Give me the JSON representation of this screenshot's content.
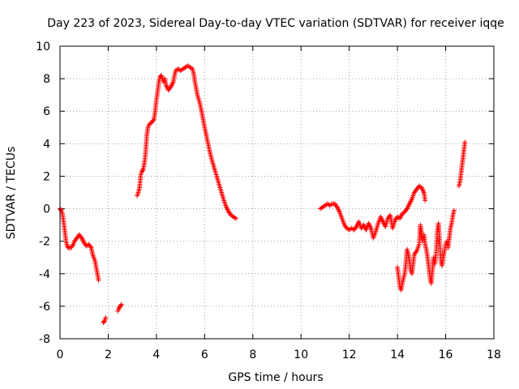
{
  "chart_data": {
    "type": "scatter",
    "title": "Day 223 of 2023, Sidereal Day-to-day VTEC variation (SDTVAR) for receiver iqqe",
    "xlabel": "GPS time / hours",
    "ylabel": "SDTVAR / TECUs",
    "xlim": [
      0,
      18
    ],
    "ylim": [
      -8,
      10
    ],
    "xticks": [
      0,
      2,
      4,
      6,
      8,
      10,
      12,
      14,
      16,
      18
    ],
    "yticks": [
      -8,
      -6,
      -4,
      -2,
      0,
      2,
      4,
      6,
      8,
      10
    ],
    "grid": true,
    "marker": "+",
    "color": "#ff0000",
    "series": [
      {
        "name": "SDTVAR",
        "segments": [
          [
            [
              0.0,
              0.0
            ],
            [
              0.05,
              -0.1
            ],
            [
              0.1,
              -0.3
            ],
            [
              0.15,
              -0.8
            ],
            [
              0.2,
              -1.4
            ],
            [
              0.25,
              -2.0
            ],
            [
              0.3,
              -2.3
            ],
            [
              0.35,
              -2.4
            ],
            [
              0.45,
              -2.4
            ],
            [
              0.55,
              -2.2
            ],
            [
              0.6,
              -2.0
            ],
            [
              0.7,
              -1.8
            ],
            [
              0.8,
              -1.6
            ],
            [
              0.9,
              -1.8
            ],
            [
              1.0,
              -2.1
            ],
            [
              1.1,
              -2.3
            ],
            [
              1.2,
              -2.2
            ],
            [
              1.3,
              -2.4
            ],
            [
              1.35,
              -2.8
            ],
            [
              1.45,
              -3.2
            ],
            [
              1.5,
              -3.6
            ],
            [
              1.55,
              -4.0
            ],
            [
              1.6,
              -4.4
            ]
          ],
          [
            [
              1.8,
              -7.0
            ],
            [
              1.85,
              -6.9
            ],
            [
              1.9,
              -6.7
            ]
          ],
          [
            [
              2.4,
              -6.3
            ],
            [
              2.45,
              -6.1
            ],
            [
              2.5,
              -6.0
            ],
            [
              2.55,
              -5.9
            ]
          ],
          [
            [
              3.2,
              0.8
            ],
            [
              3.25,
              1.0
            ],
            [
              3.3,
              1.3
            ],
            [
              3.35,
              2.1
            ],
            [
              3.4,
              2.3
            ],
            [
              3.45,
              2.4
            ],
            [
              3.5,
              2.8
            ],
            [
              3.55,
              3.4
            ],
            [
              3.6,
              4.5
            ],
            [
              3.65,
              5.0
            ],
            [
              3.7,
              5.2
            ],
            [
              3.8,
              5.3
            ],
            [
              3.9,
              5.5
            ],
            [
              3.95,
              6.0
            ],
            [
              4.0,
              6.7
            ],
            [
              4.05,
              7.2
            ],
            [
              4.1,
              7.8
            ],
            [
              4.15,
              8.1
            ],
            [
              4.2,
              8.2
            ],
            [
              4.25,
              8.0
            ],
            [
              4.3,
              7.8
            ],
            [
              4.35,
              8.0
            ],
            [
              4.4,
              7.6
            ],
            [
              4.5,
              7.3
            ],
            [
              4.6,
              7.5
            ],
            [
              4.7,
              7.8
            ],
            [
              4.75,
              8.2
            ],
            [
              4.8,
              8.5
            ],
            [
              4.9,
              8.6
            ],
            [
              5.0,
              8.5
            ],
            [
              5.1,
              8.6
            ],
            [
              5.2,
              8.7
            ],
            [
              5.3,
              8.8
            ],
            [
              5.4,
              8.7
            ],
            [
              5.5,
              8.6
            ],
            [
              5.55,
              8.3
            ],
            [
              5.6,
              7.8
            ],
            [
              5.7,
              7.0
            ],
            [
              5.8,
              6.5
            ],
            [
              5.9,
              5.8
            ],
            [
              6.0,
              5.0
            ],
            [
              6.1,
              4.3
            ],
            [
              6.2,
              3.6
            ],
            [
              6.3,
              3.0
            ],
            [
              6.4,
              2.5
            ],
            [
              6.5,
              2.0
            ],
            [
              6.6,
              1.5
            ],
            [
              6.7,
              1.0
            ],
            [
              6.8,
              0.5
            ],
            [
              6.9,
              0.1
            ],
            [
              7.0,
              -0.2
            ],
            [
              7.1,
              -0.4
            ],
            [
              7.2,
              -0.5
            ],
            [
              7.3,
              -0.6
            ]
          ],
          [
            [
              10.8,
              0.0
            ],
            [
              10.9,
              0.1
            ],
            [
              11.0,
              0.2
            ],
            [
              11.1,
              0.3
            ],
            [
              11.2,
              0.2
            ],
            [
              11.3,
              0.3
            ],
            [
              11.4,
              0.3
            ],
            [
              11.5,
              0.1
            ],
            [
              11.6,
              -0.2
            ],
            [
              11.7,
              -0.6
            ],
            [
              11.8,
              -1.0
            ],
            [
              11.9,
              -1.2
            ],
            [
              12.0,
              -1.3
            ],
            [
              12.1,
              -1.2
            ],
            [
              12.2,
              -1.3
            ],
            [
              12.3,
              -1.1
            ],
            [
              12.4,
              -0.8
            ],
            [
              12.5,
              -1.2
            ],
            [
              12.6,
              -1.0
            ],
            [
              12.7,
              -1.3
            ],
            [
              12.8,
              -0.9
            ],
            [
              12.9,
              -1.2
            ],
            [
              13.0,
              -1.8
            ],
            [
              13.1,
              -1.4
            ],
            [
              13.2,
              -0.9
            ],
            [
              13.3,
              -0.5
            ],
            [
              13.4,
              -0.8
            ],
            [
              13.5,
              -1.1
            ],
            [
              13.6,
              -0.6
            ],
            [
              13.7,
              -0.4
            ],
            [
              13.8,
              -1.2
            ],
            [
              13.9,
              -0.7
            ],
            [
              14.0,
              -0.5
            ],
            [
              14.1,
              -0.6
            ],
            [
              14.2,
              -0.3
            ],
            [
              14.3,
              -0.2
            ],
            [
              14.4,
              0.0
            ],
            [
              14.5,
              0.3
            ],
            [
              14.6,
              0.6
            ],
            [
              14.7,
              1.0
            ],
            [
              14.8,
              1.2
            ],
            [
              14.9,
              1.4
            ],
            [
              15.0,
              1.3
            ],
            [
              15.1,
              1.0
            ],
            [
              15.15,
              0.5
            ]
          ],
          [
            [
              14.0,
              -3.6
            ],
            [
              14.05,
              -4.2
            ],
            [
              14.1,
              -4.8
            ],
            [
              14.15,
              -5.0
            ],
            [
              14.2,
              -4.6
            ],
            [
              14.25,
              -4.3
            ],
            [
              14.3,
              -4.0
            ],
            [
              14.35,
              -3.4
            ],
            [
              14.4,
              -2.5
            ],
            [
              14.45,
              -2.8
            ],
            [
              14.5,
              -3.2
            ],
            [
              14.55,
              -3.8
            ],
            [
              14.6,
              -4.0
            ],
            [
              14.65,
              -3.4
            ],
            [
              14.7,
              -2.8
            ],
            [
              14.8,
              -2.6
            ],
            [
              14.9,
              -2.2
            ],
            [
              14.95,
              -1.0
            ],
            [
              15.0,
              -1.5
            ],
            [
              15.05,
              -2.0
            ],
            [
              15.1,
              -1.6
            ],
            [
              15.15,
              -2.2
            ],
            [
              15.2,
              -2.5
            ],
            [
              15.25,
              -3.0
            ],
            [
              15.3,
              -3.6
            ],
            [
              15.35,
              -4.2
            ],
            [
              15.4,
              -4.6
            ],
            [
              15.45,
              -3.8
            ],
            [
              15.5,
              -3.0
            ],
            [
              15.55,
              -3.4
            ],
            [
              15.6,
              -2.8
            ],
            [
              15.65,
              -1.5
            ],
            [
              15.7,
              -0.9
            ],
            [
              15.75,
              -2.0
            ],
            [
              15.8,
              -3.2
            ],
            [
              15.85,
              -3.5
            ],
            [
              15.9,
              -3.0
            ],
            [
              15.95,
              -2.6
            ],
            [
              16.0,
              -2.2
            ],
            [
              16.05,
              -2.0
            ],
            [
              16.1,
              -2.4
            ],
            [
              16.15,
              -1.8
            ],
            [
              16.2,
              -1.2
            ],
            [
              16.25,
              -0.9
            ],
            [
              16.3,
              -0.4
            ],
            [
              16.35,
              -0.1
            ]
          ],
          [
            [
              16.55,
              1.4
            ],
            [
              16.6,
              1.7
            ],
            [
              16.65,
              2.3
            ],
            [
              16.7,
              2.9
            ],
            [
              16.75,
              3.5
            ],
            [
              16.8,
              4.1
            ]
          ]
        ]
      }
    ]
  }
}
